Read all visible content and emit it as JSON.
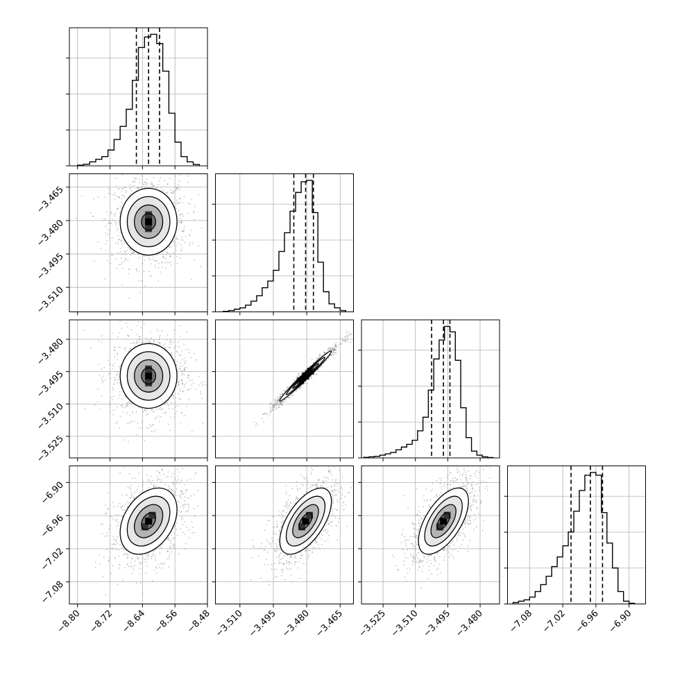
{
  "chart_data": {
    "type": "corner",
    "grid": true,
    "n_params": 4,
    "parameters": [
      {
        "index": 0,
        "median": -8.625,
        "q16": -8.655,
        "q84": -8.598,
        "range": [
          -8.82,
          -8.48
        ],
        "ticks": [
          -8.8,
          -8.72,
          -8.64,
          -8.56,
          -8.48
        ],
        "tick_labels": [
          "−8.80",
          "−8.72",
          "−8.64",
          "−8.56",
          "−8.48"
        ]
      },
      {
        "index": 1,
        "median": -3.4805,
        "q16": -3.4858,
        "q84": -3.477,
        "range": [
          -3.521,
          -3.459
        ],
        "ticks": [
          -3.51,
          -3.495,
          -3.48,
          -3.465
        ],
        "tick_labels": [
          "−3.510",
          "−3.495",
          "−3.480",
          "−3.465"
        ]
      },
      {
        "index": 2,
        "median": -3.497,
        "q16": -3.5025,
        "q84": -3.494,
        "range": [
          -3.535,
          -3.471
        ],
        "ticks": [
          -3.525,
          -3.51,
          -3.495,
          -3.48
        ],
        "tick_labels": [
          "−3.525",
          "−3.510",
          "−3.495",
          "−3.480"
        ]
      },
      {
        "index": 3,
        "median": -6.97,
        "q16": -7.005,
        "q84": -6.948,
        "range": [
          -7.12,
          -6.87
        ],
        "ticks": [
          -7.08,
          -7.02,
          -6.96,
          -6.9
        ],
        "tick_labels": [
          "−7.08",
          "−7.02",
          "−6.96",
          "−6.90"
        ]
      }
    ],
    "histograms": [
      {
        "param": 0,
        "bin_edges": [
          -8.8,
          -8.785,
          -8.77,
          -8.755,
          -8.74,
          -8.725,
          -8.71,
          -8.695,
          -8.68,
          -8.665,
          -8.65,
          -8.635,
          -8.62,
          -8.605,
          -8.59,
          -8.575,
          -8.56,
          -8.545,
          -8.53,
          -8.515,
          -8.5
        ],
        "counts": [
          0.005,
          0.012,
          0.03,
          0.05,
          0.07,
          0.12,
          0.2,
          0.3,
          0.43,
          0.65,
          0.9,
          0.98,
          1.0,
          0.93,
          0.72,
          0.4,
          0.18,
          0.07,
          0.03,
          0.01
        ]
      },
      {
        "param": 1,
        "bin_edges": [
          -3.5175,
          -3.515,
          -3.5125,
          -3.51,
          -3.5075,
          -3.505,
          -3.5025,
          -3.5,
          -3.4975,
          -3.495,
          -3.4925,
          -3.49,
          -3.4875,
          -3.485,
          -3.4825,
          -3.48,
          -3.4775,
          -3.475,
          -3.4725,
          -3.47,
          -3.4675,
          -3.465,
          -3.4625
        ],
        "counts": [
          0.004,
          0.01,
          0.02,
          0.03,
          0.05,
          0.08,
          0.12,
          0.18,
          0.23,
          0.31,
          0.45,
          0.59,
          0.75,
          0.89,
          0.97,
          0.98,
          0.74,
          0.37,
          0.15,
          0.06,
          0.03,
          0.01
        ]
      },
      {
        "param": 2,
        "bin_edges": [
          -3.534,
          -3.5315,
          -3.529,
          -3.5265,
          -3.524,
          -3.5215,
          -3.519,
          -3.5165,
          -3.514,
          -3.5115,
          -3.509,
          -3.5065,
          -3.504,
          -3.5015,
          -3.499,
          -3.4965,
          -3.494,
          -3.4915,
          -3.489,
          -3.4865,
          -3.484,
          -3.4815,
          -3.479,
          -3.4765,
          -3.474
        ],
        "counts": [
          0.004,
          0.008,
          0.012,
          0.02,
          0.03,
          0.04,
          0.06,
          0.08,
          0.1,
          0.13,
          0.2,
          0.3,
          0.5,
          0.73,
          0.87,
          0.97,
          0.93,
          0.72,
          0.37,
          0.15,
          0.05,
          0.02,
          0.008,
          0.003
        ]
      },
      {
        "param": 3,
        "bin_edges": [
          -7.11,
          -7.1,
          -7.09,
          -7.08,
          -7.07,
          -7.06,
          -7.05,
          -7.04,
          -7.03,
          -7.02,
          -7.01,
          -7.0,
          -6.99,
          -6.98,
          -6.97,
          -6.96,
          -6.95,
          -6.94,
          -6.93,
          -6.92,
          -6.91,
          -6.9,
          -6.89
        ],
        "counts": [
          0.01,
          0.02,
          0.03,
          0.05,
          0.09,
          0.14,
          0.2,
          0.27,
          0.34,
          0.42,
          0.52,
          0.67,
          0.82,
          0.93,
          0.95,
          0.93,
          0.66,
          0.44,
          0.26,
          0.09,
          0.02,
          0.005
        ]
      }
    ],
    "pairs": [
      {
        "x_param": 0,
        "y_param": 1,
        "center": [
          -8.625,
          -3.4805
        ],
        "sigma": [
          0.035,
          0.0075
        ],
        "rho": 0.0
      },
      {
        "x_param": 0,
        "y_param": 2,
        "center": [
          -8.625,
          -3.497
        ],
        "sigma": [
          0.035,
          0.0075
        ],
        "rho": 0.0
      },
      {
        "x_param": 1,
        "y_param": 2,
        "center": [
          -3.4805,
          -3.497
        ],
        "sigma": [
          0.0058,
          0.0058
        ],
        "rho": 0.985
      },
      {
        "x_param": 0,
        "y_param": 3,
        "center": [
          -8.625,
          -6.97
        ],
        "sigma": [
          0.035,
          0.03
        ],
        "rho": 0.35
      },
      {
        "x_param": 1,
        "y_param": 3,
        "center": [
          -3.4805,
          -6.97
        ],
        "sigma": [
          0.0058,
          0.03
        ],
        "rho": 0.6
      },
      {
        "x_param": 2,
        "y_param": 3,
        "center": [
          -3.497,
          -6.97
        ],
        "sigma": [
          0.0058,
          0.03
        ],
        "rho": 0.6
      }
    ],
    "contour_levels_sigma": [
      0.5,
      1.0,
      1.5,
      2.0
    ],
    "colors": {
      "hist": "#000000",
      "points": "#7a7a7a",
      "density_dark": "#000000",
      "density_light": "#ffffff",
      "grid": "#b0b0b0"
    }
  }
}
